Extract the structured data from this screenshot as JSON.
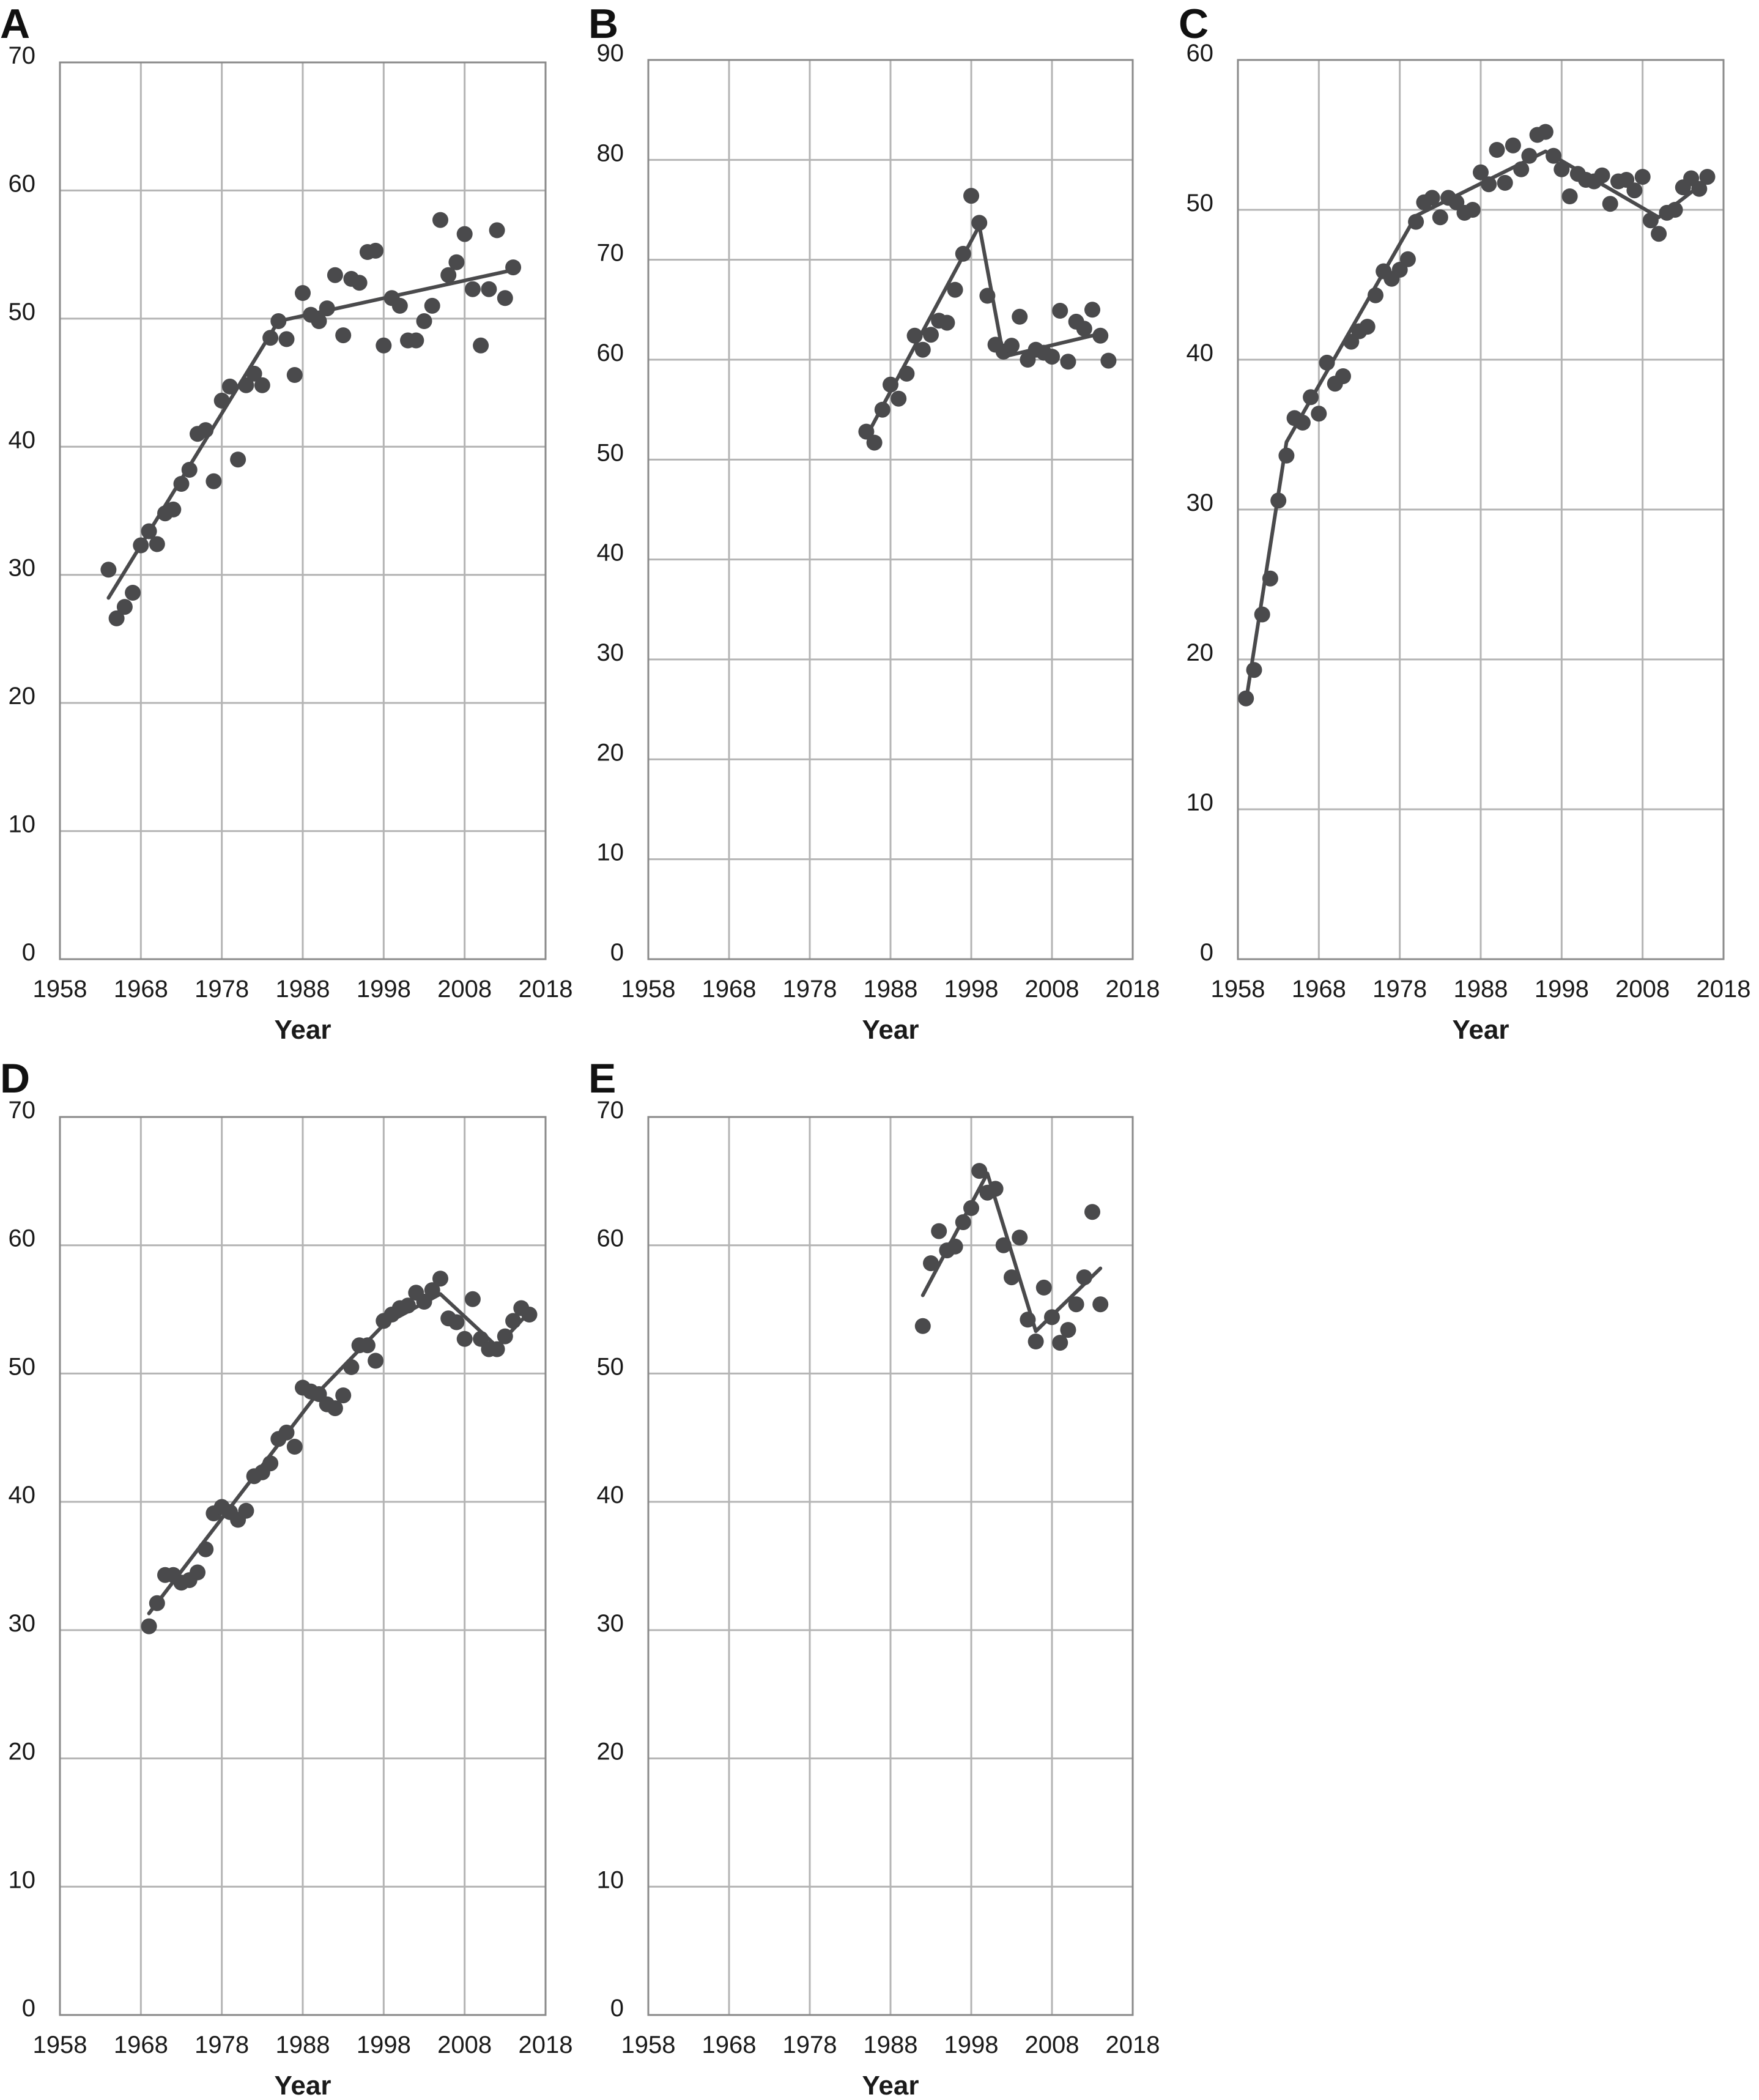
{
  "figure": {
    "colors": {
      "marker": "#4a4a4c",
      "line": "#4a4a4c",
      "grid": "#b4b4b4",
      "frame": "#8a8a8a",
      "text": "#1a1a1a"
    }
  },
  "chart_data": [
    {
      "panel": "A",
      "type": "scatter",
      "title": "",
      "xlabel": "Year",
      "ylabel": "",
      "xlim": [
        1958,
        2018
      ],
      "ylim": [
        0,
        70
      ],
      "x_ticks": [
        "1958",
        "1968",
        "1978",
        "1988",
        "1998",
        "2008",
        "2018"
      ],
      "y_ticks": [
        "0",
        "10",
        "20",
        "30",
        "40",
        "50",
        "60",
        "70"
      ],
      "grid": true,
      "points": [
        [
          1964,
          30.4
        ],
        [
          1965,
          26.6
        ],
        [
          1966,
          27.5
        ],
        [
          1967,
          28.6
        ],
        [
          1968,
          32.3
        ],
        [
          1969,
          33.4
        ],
        [
          1970,
          32.4
        ],
        [
          1971,
          34.8
        ],
        [
          1972,
          35.1
        ],
        [
          1973,
          37.1
        ],
        [
          1974,
          38.2
        ],
        [
          1975,
          41.0
        ],
        [
          1976,
          41.3
        ],
        [
          1977,
          37.3
        ],
        [
          1978,
          43.6
        ],
        [
          1979,
          44.7
        ],
        [
          1980,
          39.0
        ],
        [
          1981,
          44.8
        ],
        [
          1982,
          45.7
        ],
        [
          1983,
          44.8
        ],
        [
          1984,
          48.5
        ],
        [
          1985,
          49.8
        ],
        [
          1986,
          48.4
        ],
        [
          1987,
          45.6
        ],
        [
          1988,
          52.0
        ],
        [
          1989,
          50.3
        ],
        [
          1990,
          49.8
        ],
        [
          1991,
          50.8
        ],
        [
          1992,
          53.4
        ],
        [
          1993,
          48.7
        ],
        [
          1994,
          53.1
        ],
        [
          1995,
          52.8
        ],
        [
          1996,
          55.2
        ],
        [
          1997,
          55.3
        ],
        [
          1998,
          47.9
        ],
        [
          1999,
          51.6
        ],
        [
          2000,
          51.0
        ],
        [
          2001,
          48.3
        ],
        [
          2002,
          48.3
        ],
        [
          2003,
          49.8
        ],
        [
          2004,
          51.0
        ],
        [
          2005,
          57.7
        ],
        [
          2006,
          53.4
        ],
        [
          2007,
          54.4
        ],
        [
          2008,
          56.6
        ],
        [
          2009,
          52.3
        ],
        [
          2010,
          47.9
        ],
        [
          2011,
          52.3
        ],
        [
          2012,
          56.9
        ],
        [
          2013,
          51.6
        ],
        [
          2014,
          54.0
        ]
      ],
      "trend": [
        [
          1964,
          28.2
        ],
        [
          1985,
          49.8
        ],
        [
          2014,
          53.8
        ]
      ]
    },
    {
      "panel": "B",
      "type": "scatter",
      "title": "",
      "xlabel": "Year",
      "ylabel": "",
      "xlim": [
        1958,
        2018
      ],
      "ylim": [
        0,
        90
      ],
      "x_ticks": [
        "1958",
        "1968",
        "1978",
        "1988",
        "1998",
        "2008",
        "2018"
      ],
      "y_ticks": [
        "0",
        "10",
        "20",
        "30",
        "40",
        "50",
        "60",
        "70",
        "80",
        "90"
      ],
      "grid": true,
      "points": [
        [
          1985,
          52.8
        ],
        [
          1986,
          51.7
        ],
        [
          1987,
          55.0
        ],
        [
          1988,
          57.5
        ],
        [
          1989,
          56.1
        ],
        [
          1990,
          58.6
        ],
        [
          1991,
          62.4
        ],
        [
          1992,
          61.0
        ],
        [
          1993,
          62.5
        ],
        [
          1994,
          63.9
        ],
        [
          1995,
          63.7
        ],
        [
          1996,
          67.0
        ],
        [
          1997,
          70.6
        ],
        [
          1998,
          76.4
        ],
        [
          1999,
          73.7
        ],
        [
          2000,
          66.4
        ],
        [
          2001,
          61.5
        ],
        [
          2002,
          60.8
        ],
        [
          2003,
          61.4
        ],
        [
          2004,
          64.3
        ],
        [
          2005,
          60.0
        ],
        [
          2006,
          61.0
        ],
        [
          2007,
          60.7
        ],
        [
          2008,
          60.3
        ],
        [
          2009,
          64.9
        ],
        [
          2010,
          59.8
        ],
        [
          2011,
          63.8
        ],
        [
          2012,
          63.1
        ],
        [
          2013,
          65.0
        ],
        [
          2014,
          62.4
        ],
        [
          2015,
          59.9
        ]
      ],
      "trend": [
        [
          1985,
          52.3
        ],
        [
          1999,
          73.4
        ],
        [
          2002,
          60.3
        ],
        [
          2014,
          62.6
        ]
      ]
    },
    {
      "panel": "C",
      "type": "scatter",
      "title": "",
      "xlabel": "Year",
      "ylabel": "",
      "xlim": [
        1958,
        2018
      ],
      "ylim": [
        0,
        60
      ],
      "x_ticks": [
        "1958",
        "1968",
        "1978",
        "1988",
        "1998",
        "2008",
        "2018"
      ],
      "y_ticks": [
        "0",
        "10",
        "20",
        "30",
        "40",
        "50",
        "60"
      ],
      "grid": true,
      "points": [
        [
          1959,
          17.4
        ],
        [
          1960,
          19.3
        ],
        [
          1961,
          23.0
        ],
        [
          1962,
          25.4
        ],
        [
          1963,
          30.6
        ],
        [
          1964,
          33.6
        ],
        [
          1965,
          36.1
        ],
        [
          1966,
          35.8
        ],
        [
          1967,
          37.5
        ],
        [
          1968,
          36.4
        ],
        [
          1969,
          39.8
        ],
        [
          1970,
          38.4
        ],
        [
          1971,
          38.9
        ],
        [
          1972,
          41.2
        ],
        [
          1973,
          41.9
        ],
        [
          1974,
          42.2
        ],
        [
          1975,
          44.3
        ],
        [
          1976,
          45.9
        ],
        [
          1977,
          45.4
        ],
        [
          1978,
          46.0
        ],
        [
          1979,
          46.7
        ],
        [
          1980,
          49.2
        ],
        [
          1981,
          50.5
        ],
        [
          1982,
          50.8
        ],
        [
          1983,
          49.5
        ],
        [
          1984,
          50.8
        ],
        [
          1985,
          50.5
        ],
        [
          1986,
          49.8
        ],
        [
          1987,
          50.0
        ],
        [
          1988,
          52.5
        ],
        [
          1989,
          51.7
        ],
        [
          1990,
          54.0
        ],
        [
          1991,
          51.8
        ],
        [
          1992,
          54.3
        ],
        [
          1993,
          52.7
        ],
        [
          1994,
          53.6
        ],
        [
          1995,
          55.0
        ],
        [
          1996,
          55.2
        ],
        [
          1997,
          53.6
        ],
        [
          1998,
          52.7
        ],
        [
          1999,
          50.9
        ],
        [
          2000,
          52.4
        ],
        [
          2001,
          52.0
        ],
        [
          2002,
          51.9
        ],
        [
          2003,
          52.3
        ],
        [
          2004,
          50.4
        ],
        [
          2005,
          51.9
        ],
        [
          2006,
          52.0
        ],
        [
          2007,
          51.3
        ],
        [
          2008,
          52.2
        ],
        [
          2009,
          49.3
        ],
        [
          2010,
          48.4
        ],
        [
          2011,
          49.8
        ],
        [
          2012,
          50.0
        ],
        [
          2013,
          51.5
        ],
        [
          2014,
          52.1
        ],
        [
          2015,
          51.4
        ],
        [
          2016,
          52.2
        ]
      ],
      "trend": [
        [
          1959,
          17.2
        ],
        [
          1964,
          34.5
        ],
        [
          1980,
          49.6
        ],
        [
          1996,
          53.9
        ],
        [
          2010,
          49.5
        ],
        [
          2016,
          52.0
        ]
      ]
    },
    {
      "panel": "D",
      "type": "scatter",
      "title": "",
      "xlabel": "Year",
      "ylabel": "",
      "xlim": [
        1958,
        2018
      ],
      "ylim": [
        0,
        70
      ],
      "x_ticks": [
        "1958",
        "1968",
        "1978",
        "1988",
        "1998",
        "2008",
        "2018"
      ],
      "y_ticks": [
        "0",
        "10",
        "20",
        "30",
        "40",
        "50",
        "60",
        "70"
      ],
      "grid": true,
      "points": [
        [
          1969,
          30.3
        ],
        [
          1970,
          32.1
        ],
        [
          1971,
          34.3
        ],
        [
          1972,
          34.3
        ],
        [
          1973,
          33.7
        ],
        [
          1974,
          33.9
        ],
        [
          1975,
          34.5
        ],
        [
          1976,
          36.3
        ],
        [
          1977,
          39.1
        ],
        [
          1978,
          39.6
        ],
        [
          1979,
          39.2
        ],
        [
          1980,
          38.6
        ],
        [
          1981,
          39.3
        ],
        [
          1982,
          42.0
        ],
        [
          1983,
          42.3
        ],
        [
          1984,
          43.0
        ],
        [
          1985,
          44.9
        ],
        [
          1986,
          45.4
        ],
        [
          1987,
          44.3
        ],
        [
          1988,
          48.9
        ],
        [
          1989,
          48.6
        ],
        [
          1990,
          48.4
        ],
        [
          1991,
          47.6
        ],
        [
          1992,
          47.3
        ],
        [
          1993,
          48.3
        ],
        [
          1994,
          50.5
        ],
        [
          1995,
          52.2
        ],
        [
          1996,
          52.2
        ],
        [
          1997,
          51.0
        ],
        [
          1998,
          54.1
        ],
        [
          1999,
          54.6
        ],
        [
          2000,
          55.1
        ],
        [
          2001,
          55.3
        ],
        [
          2002,
          56.3
        ],
        [
          2003,
          55.6
        ],
        [
          2004,
          56.5
        ],
        [
          2005,
          57.4
        ],
        [
          2006,
          54.3
        ],
        [
          2007,
          54.0
        ],
        [
          2008,
          52.7
        ],
        [
          2009,
          55.8
        ],
        [
          2010,
          52.7
        ],
        [
          2011,
          51.9
        ],
        [
          2012,
          51.9
        ],
        [
          2013,
          52.9
        ],
        [
          2014,
          54.1
        ],
        [
          2015,
          55.1
        ],
        [
          2016,
          54.6
        ]
      ],
      "trend": [
        [
          1969,
          31.3
        ],
        [
          1990,
          48.6
        ],
        [
          1998,
          53.8
        ],
        [
          2005,
          56.2
        ],
        [
          2012,
          52.1
        ],
        [
          2016,
          54.8
        ]
      ]
    },
    {
      "panel": "E",
      "type": "scatter",
      "title": "",
      "xlabel": "Year",
      "ylabel": "",
      "xlim": [
        1958,
        2018
      ],
      "ylim": [
        0,
        70
      ],
      "x_ticks": [
        "1958",
        "1968",
        "1978",
        "1988",
        "1998",
        "2008",
        "2018"
      ],
      "y_ticks": [
        "0",
        "10",
        "20",
        "30",
        "40",
        "50",
        "60",
        "70"
      ],
      "grid": true,
      "points": [
        [
          1992,
          53.7
        ],
        [
          1993,
          58.6
        ],
        [
          1994,
          61.1
        ],
        [
          1995,
          59.6
        ],
        [
          1996,
          59.9
        ],
        [
          1997,
          61.8
        ],
        [
          1998,
          62.9
        ],
        [
          1999,
          65.8
        ],
        [
          2000,
          64.1
        ],
        [
          2001,
          64.4
        ],
        [
          2002,
          60.0
        ],
        [
          2003,
          57.5
        ],
        [
          2004,
          60.6
        ],
        [
          2005,
          54.2
        ],
        [
          2006,
          52.5
        ],
        [
          2007,
          56.7
        ],
        [
          2008,
          54.4
        ],
        [
          2009,
          52.4
        ],
        [
          2010,
          53.4
        ],
        [
          2011,
          55.4
        ],
        [
          2012,
          57.5
        ],
        [
          2013,
          62.6
        ],
        [
          2014,
          55.4
        ]
      ],
      "trend": [
        [
          1992,
          56.1
        ],
        [
          2000,
          65.6
        ],
        [
          2006,
          53.3
        ],
        [
          2014,
          58.2
        ]
      ]
    }
  ]
}
